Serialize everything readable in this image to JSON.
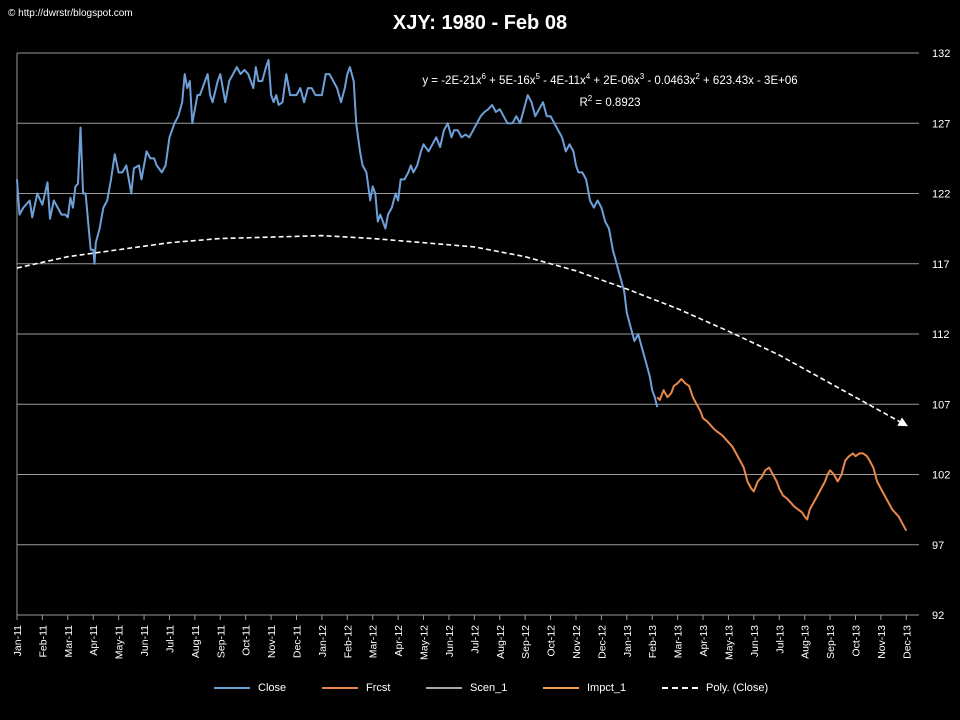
{
  "watermark": "© http://dwrstr/blogspot.com",
  "equation": {
    "line1_html": "y = -2E-21x<sup>6</sup> + 5E-16x<sup>5</sup> - 4E-11x<sup>4</sup> + 2E-06x<sup>3</sup> - 0.0463x<sup>2</sup> + 623.43x - 3E+06",
    "line2_html": "R<sup>2</sup> = 0.8923"
  },
  "colors": {
    "background": "#000000",
    "close": "#6f9fd8",
    "frcst": "#e8874a",
    "scen_1": "#a6a6a6",
    "impct_1": "#f0a050",
    "poly": "#ffffff",
    "grid": "#9a9a9a"
  },
  "chart_data": {
    "type": "line",
    "title": "XJY: 1980 - Feb 08",
    "xlabel": "",
    "ylabel": "",
    "ylim": [
      92,
      132
    ],
    "yticks": [
      92,
      97,
      102,
      107,
      112,
      117,
      122,
      127,
      132
    ],
    "y_axis_side": "right",
    "grid": true,
    "legend_position": "bottom",
    "x_categories": [
      "Jan-11",
      "Feb-11",
      "Mar-11",
      "Apr-11",
      "May-11",
      "Jun-11",
      "Jul-11",
      "Aug-11",
      "Sep-11",
      "Oct-11",
      "Nov-11",
      "Dec-11",
      "Jan-12",
      "Feb-12",
      "Mar-12",
      "Apr-12",
      "May-12",
      "Jun-12",
      "Jul-12",
      "Aug-12",
      "Sep-12",
      "Oct-12",
      "Nov-12",
      "Dec-12",
      "Jan-13",
      "Feb-13",
      "Mar-13",
      "Apr-13",
      "May-13",
      "Jun-13",
      "Jul-13",
      "Aug-13",
      "Sep-13",
      "Oct-13",
      "Nov-13",
      "Dec-13"
    ],
    "series": [
      {
        "name": "Close",
        "style": "solid",
        "points": [
          [
            0,
            123
          ],
          [
            0.1,
            120.5
          ],
          [
            0.25,
            121
          ],
          [
            0.5,
            121.5
          ],
          [
            0.6,
            120.3
          ],
          [
            0.8,
            122
          ],
          [
            1.0,
            121.2
          ],
          [
            1.2,
            122.8
          ],
          [
            1.3,
            120.2
          ],
          [
            1.45,
            121.5
          ],
          [
            1.6,
            121
          ],
          [
            1.75,
            120.5
          ],
          [
            1.9,
            120.5
          ],
          [
            2.0,
            120.3
          ],
          [
            2.1,
            121.7
          ],
          [
            2.2,
            121
          ],
          [
            2.3,
            122.5
          ],
          [
            2.4,
            122.7
          ],
          [
            2.5,
            126.7
          ],
          [
            2.6,
            122
          ],
          [
            2.7,
            122
          ],
          [
            2.8,
            120
          ],
          [
            2.9,
            118
          ],
          [
            3.0,
            118
          ],
          [
            3.05,
            117
          ],
          [
            3.1,
            118.5
          ],
          [
            3.25,
            119.5
          ],
          [
            3.4,
            121
          ],
          [
            3.55,
            121.5
          ],
          [
            3.7,
            123
          ],
          [
            3.85,
            124.8
          ],
          [
            4.0,
            123.5
          ],
          [
            4.15,
            123.5
          ],
          [
            4.3,
            124
          ],
          [
            4.5,
            122
          ],
          [
            4.6,
            123.8
          ],
          [
            4.8,
            124
          ],
          [
            4.9,
            123
          ],
          [
            5.0,
            124
          ],
          [
            5.1,
            125
          ],
          [
            5.25,
            124.5
          ],
          [
            5.4,
            124.5
          ],
          [
            5.5,
            124
          ],
          [
            5.7,
            123.5
          ],
          [
            5.85,
            124
          ],
          [
            6.0,
            126
          ],
          [
            6.2,
            127
          ],
          [
            6.35,
            127.5
          ],
          [
            6.5,
            128.5
          ],
          [
            6.6,
            130.5
          ],
          [
            6.7,
            129.5
          ],
          [
            6.8,
            130
          ],
          [
            6.9,
            127
          ],
          [
            7.0,
            128
          ],
          [
            7.1,
            129
          ],
          [
            7.2,
            129
          ],
          [
            7.4,
            130
          ],
          [
            7.5,
            130.5
          ],
          [
            7.6,
            129
          ],
          [
            7.7,
            128.5
          ],
          [
            7.9,
            130
          ],
          [
            8.0,
            130.5
          ],
          [
            8.2,
            128.5
          ],
          [
            8.35,
            130
          ],
          [
            8.5,
            130.5
          ],
          [
            8.65,
            131
          ],
          [
            8.8,
            130.5
          ],
          [
            8.95,
            130.8
          ],
          [
            9.1,
            130.5
          ],
          [
            9.3,
            129.5
          ],
          [
            9.4,
            131
          ],
          [
            9.5,
            130
          ],
          [
            9.65,
            130
          ],
          [
            9.8,
            131
          ],
          [
            9.9,
            131.5
          ],
          [
            10.0,
            129
          ],
          [
            10.1,
            128.5
          ],
          [
            10.2,
            129
          ],
          [
            10.3,
            128.3
          ],
          [
            10.45,
            128.5
          ],
          [
            10.6,
            130.5
          ],
          [
            10.75,
            129
          ],
          [
            10.85,
            129
          ],
          [
            11.0,
            129
          ],
          [
            11.15,
            129.5
          ],
          [
            11.3,
            128.5
          ],
          [
            11.45,
            129.5
          ],
          [
            11.6,
            129.5
          ],
          [
            11.75,
            129
          ],
          [
            11.9,
            129
          ],
          [
            12.0,
            129
          ],
          [
            12.15,
            130.5
          ],
          [
            12.3,
            130.5
          ],
          [
            12.45,
            130
          ],
          [
            12.6,
            129.5
          ],
          [
            12.75,
            128.5
          ],
          [
            12.9,
            129.5
          ],
          [
            13.0,
            130.5
          ],
          [
            13.1,
            131
          ],
          [
            13.25,
            130
          ],
          [
            13.35,
            127
          ],
          [
            13.5,
            125
          ],
          [
            13.6,
            124
          ],
          [
            13.75,
            123.5
          ],
          [
            13.9,
            121.5
          ],
          [
            14.0,
            122.5
          ],
          [
            14.1,
            122
          ],
          [
            14.2,
            120
          ],
          [
            14.3,
            120.5
          ],
          [
            14.4,
            120
          ],
          [
            14.5,
            119.5
          ],
          [
            14.6,
            120.5
          ],
          [
            14.75,
            121
          ],
          [
            14.9,
            122
          ],
          [
            15.0,
            121.5
          ],
          [
            15.1,
            123
          ],
          [
            15.25,
            123
          ],
          [
            15.4,
            123.5
          ],
          [
            15.5,
            124
          ],
          [
            15.6,
            123.5
          ],
          [
            15.75,
            124
          ],
          [
            15.9,
            125
          ],
          [
            16.0,
            125.5
          ],
          [
            16.2,
            125
          ],
          [
            16.35,
            125.5
          ],
          [
            16.5,
            126
          ],
          [
            16.65,
            125.3
          ],
          [
            16.8,
            126.5
          ],
          [
            16.95,
            127
          ],
          [
            17.1,
            126
          ],
          [
            17.2,
            126.5
          ],
          [
            17.35,
            126.5
          ],
          [
            17.5,
            126
          ],
          [
            17.65,
            126.2
          ],
          [
            17.8,
            126
          ],
          [
            17.95,
            126.5
          ],
          [
            18.1,
            127
          ],
          [
            18.25,
            127.5
          ],
          [
            18.4,
            127.8
          ],
          [
            18.55,
            128
          ],
          [
            18.7,
            128.3
          ],
          [
            18.85,
            127.8
          ],
          [
            19.0,
            128
          ],
          [
            19.15,
            127.5
          ],
          [
            19.3,
            127
          ],
          [
            19.5,
            127
          ],
          [
            19.65,
            127.5
          ],
          [
            19.8,
            127
          ],
          [
            19.95,
            128
          ],
          [
            20.1,
            129
          ],
          [
            20.25,
            128.5
          ],
          [
            20.4,
            127.5
          ],
          [
            20.55,
            128
          ],
          [
            20.7,
            128.5
          ],
          [
            20.85,
            127.5
          ],
          [
            21.0,
            127.5
          ],
          [
            21.15,
            127
          ],
          [
            21.3,
            126.5
          ],
          [
            21.45,
            126
          ],
          [
            21.6,
            125
          ],
          [
            21.75,
            125.5
          ],
          [
            21.9,
            125
          ],
          [
            22.0,
            124
          ],
          [
            22.1,
            123.5
          ],
          [
            22.25,
            123.5
          ],
          [
            22.4,
            123
          ],
          [
            22.55,
            121.5
          ],
          [
            22.7,
            121
          ],
          [
            22.85,
            121.5
          ],
          [
            23.0,
            121
          ],
          [
            23.15,
            120
          ],
          [
            23.3,
            119.5
          ],
          [
            23.45,
            118
          ],
          [
            23.6,
            117
          ],
          [
            23.75,
            116
          ],
          [
            23.9,
            115
          ],
          [
            24.0,
            113.5
          ],
          [
            24.15,
            112.5
          ],
          [
            24.3,
            111.5
          ],
          [
            24.45,
            112
          ],
          [
            24.6,
            111
          ],
          [
            24.75,
            110
          ],
          [
            24.9,
            109
          ],
          [
            25.0,
            108
          ],
          [
            25.1,
            107.5
          ],
          [
            25.2,
            106.8
          ]
        ]
      },
      {
        "name": "Frcst",
        "style": "solid",
        "points": [
          [
            25.2,
            107.5
          ],
          [
            25.3,
            107.3
          ],
          [
            25.45,
            108
          ],
          [
            25.6,
            107.5
          ],
          [
            25.75,
            107.8
          ],
          [
            25.85,
            108.3
          ],
          [
            26.0,
            108.5
          ],
          [
            26.15,
            108.8
          ],
          [
            26.3,
            108.5
          ],
          [
            26.45,
            108.3
          ],
          [
            26.6,
            107.5
          ],
          [
            26.75,
            107
          ],
          [
            26.9,
            106.5
          ],
          [
            27.0,
            106
          ],
          [
            27.15,
            105.8
          ],
          [
            27.3,
            105.5
          ],
          [
            27.45,
            105.2
          ],
          [
            27.6,
            105
          ],
          [
            27.75,
            104.8
          ],
          [
            27.9,
            104.5
          ],
          [
            28.0,
            104.3
          ],
          [
            28.15,
            104
          ],
          [
            28.3,
            103.5
          ],
          [
            28.45,
            103
          ],
          [
            28.6,
            102.5
          ],
          [
            28.75,
            101.5
          ],
          [
            28.9,
            101
          ],
          [
            29.0,
            100.8
          ],
          [
            29.15,
            101.5
          ],
          [
            29.3,
            101.8
          ],
          [
            29.45,
            102.3
          ],
          [
            29.6,
            102.5
          ],
          [
            29.75,
            102
          ],
          [
            29.9,
            101.5
          ],
          [
            30.0,
            101
          ],
          [
            30.15,
            100.5
          ],
          [
            30.3,
            100.3
          ],
          [
            30.45,
            100
          ],
          [
            30.6,
            99.7
          ],
          [
            30.75,
            99.5
          ],
          [
            30.9,
            99.3
          ],
          [
            31.0,
            99
          ],
          [
            31.1,
            98.8
          ],
          [
            31.2,
            99.5
          ],
          [
            31.35,
            100
          ],
          [
            31.5,
            100.5
          ],
          [
            31.65,
            101
          ],
          [
            31.8,
            101.5
          ],
          [
            31.9,
            102
          ],
          [
            32.0,
            102.3
          ],
          [
            32.15,
            102
          ],
          [
            32.3,
            101.5
          ],
          [
            32.45,
            102
          ],
          [
            32.6,
            103
          ],
          [
            32.75,
            103.3
          ],
          [
            32.9,
            103.5
          ],
          [
            33.0,
            103.3
          ],
          [
            33.15,
            103.5
          ],
          [
            33.3,
            103.5
          ],
          [
            33.45,
            103.3
          ],
          [
            33.55,
            103
          ],
          [
            33.7,
            102.5
          ],
          [
            33.85,
            101.5
          ],
          [
            34.0,
            101
          ],
          [
            34.15,
            100.5
          ],
          [
            34.3,
            100
          ],
          [
            34.45,
            99.5
          ],
          [
            34.55,
            99.3
          ],
          [
            34.7,
            99
          ],
          [
            34.85,
            98.5
          ],
          [
            35.0,
            98
          ]
        ]
      },
      {
        "name": "Scen_1",
        "style": "solid",
        "points": []
      },
      {
        "name": "Impct_1",
        "style": "solid",
        "points": []
      },
      {
        "name": "Poly. (Close)",
        "style": "dashed",
        "points": [
          [
            0,
            116.7
          ],
          [
            2,
            117.5
          ],
          [
            4,
            118
          ],
          [
            6,
            118.5
          ],
          [
            8,
            118.8
          ],
          [
            10,
            118.9
          ],
          [
            12,
            119
          ],
          [
            14,
            118.8
          ],
          [
            16,
            118.5
          ],
          [
            18,
            118.2
          ],
          [
            20,
            117.5
          ],
          [
            22,
            116.5
          ],
          [
            24,
            115.2
          ],
          [
            26,
            113.8
          ],
          [
            28,
            112.2
          ],
          [
            30,
            110.5
          ],
          [
            32,
            108.5
          ],
          [
            34,
            106.5
          ],
          [
            35,
            105.5
          ]
        ]
      }
    ]
  }
}
